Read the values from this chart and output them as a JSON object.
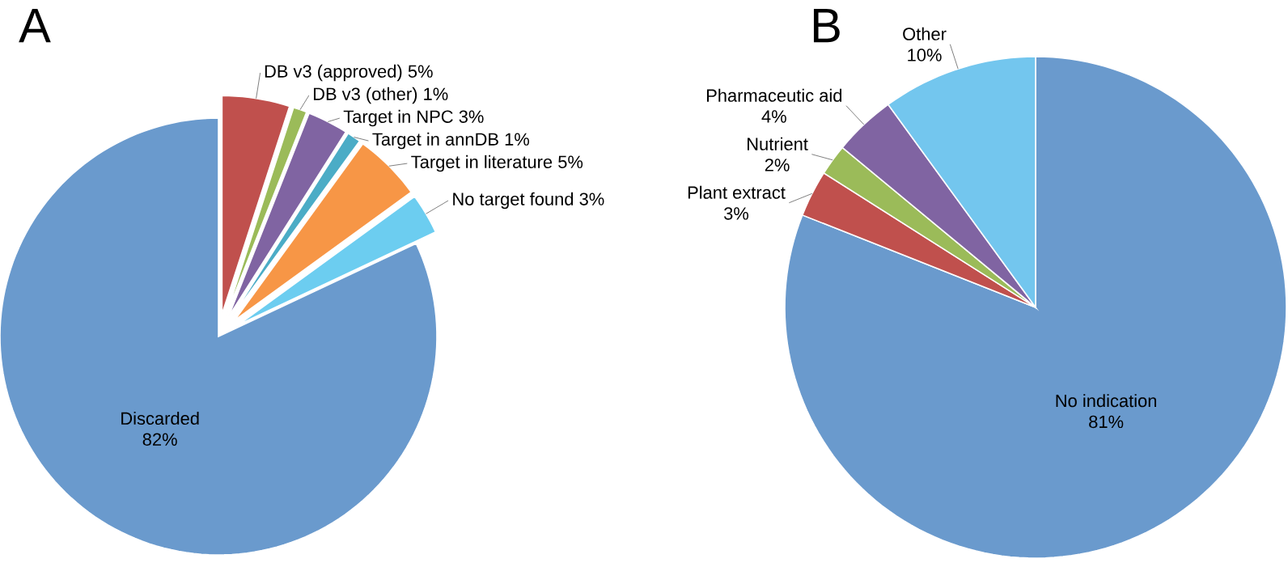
{
  "chart_data": [
    {
      "type": "pie",
      "title": "A",
      "categories": [
        "DB v3 (approved)",
        "DB v3 (other)",
        "Target in NPC",
        "Target in annDB",
        "Target in literature",
        "No target found",
        "Discarded"
      ],
      "values": [
        5,
        1,
        3,
        1,
        5,
        3,
        82
      ],
      "value_labels": [
        "5%",
        "1%",
        "3%",
        "1%",
        "5%",
        "3%",
        "82%"
      ],
      "colors": [
        "#c0504d",
        "#9bbb59",
        "#8064a2",
        "#4bacc6",
        "#f79646",
        "#6ccdf0",
        "#6a9acd"
      ]
    },
    {
      "type": "pie",
      "title": "B",
      "categories": [
        "No indication",
        "Plant extract",
        "Nutrient",
        "Pharmaceutic aid",
        "Other"
      ],
      "values": [
        81,
        3,
        2,
        4,
        10
      ],
      "value_labels": [
        "81%",
        "3%",
        "2%",
        "4%",
        "10%"
      ],
      "colors": [
        "#6a9acd",
        "#c0504d",
        "#9bbb59",
        "#8064a2",
        "#73c6ee"
      ]
    }
  ]
}
